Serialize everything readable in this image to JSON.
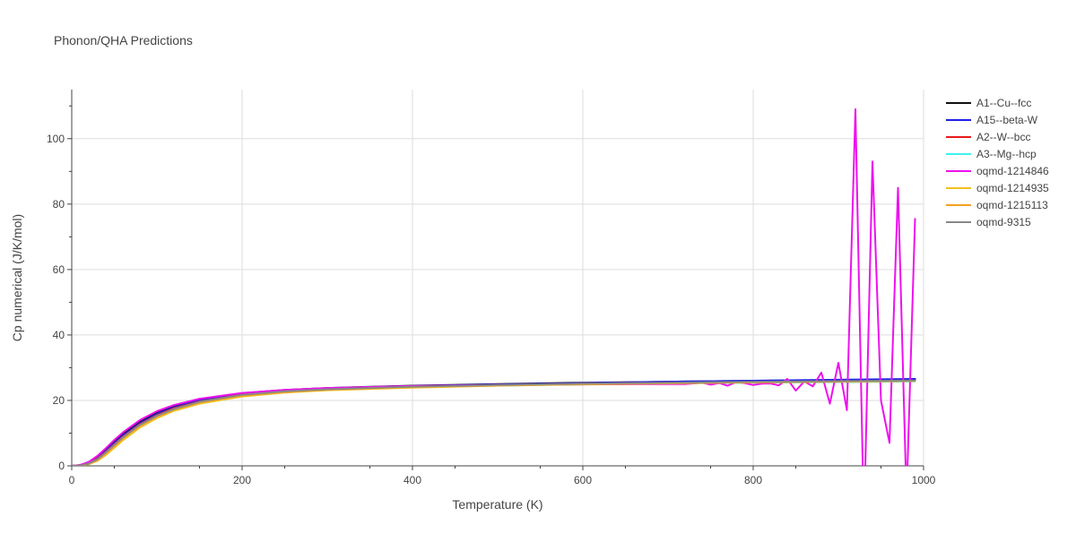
{
  "chart_data": {
    "type": "line",
    "title": "Phonon/QHA Predictions",
    "xlabel": "Temperature (K)",
    "ylabel": "Cp numerical (J/K/mol)",
    "xlim": [
      0,
      1000
    ],
    "ylim": [
      0,
      115
    ],
    "x_ticks": [
      0,
      200,
      400,
      600,
      800,
      1000
    ],
    "y_ticks": [
      0,
      20,
      40,
      60,
      80,
      100
    ],
    "grid": true,
    "legend_position": "right",
    "series": [
      {
        "name": "A1--Cu--fcc",
        "color": "#111111",
        "x": [
          0,
          10,
          20,
          30,
          40,
          50,
          60,
          80,
          100,
          120,
          150,
          200,
          250,
          300,
          400,
          500,
          600,
          700,
          800,
          900,
          990
        ],
        "y": [
          0,
          0.2,
          1.0,
          2.6,
          4.9,
          7.3,
          9.6,
          13.4,
          16.2,
          18.2,
          20.2,
          22.2,
          23.2,
          23.8,
          24.5,
          25.0,
          25.4,
          25.7,
          26.0,
          26.2,
          26.3
        ]
      },
      {
        "name": "A15--beta-W",
        "color": "#1f1fe8",
        "x": [
          0,
          10,
          20,
          30,
          40,
          50,
          60,
          80,
          100,
          120,
          150,
          200,
          250,
          300,
          400,
          500,
          600,
          700,
          800,
          900,
          990
        ],
        "y": [
          0,
          0.2,
          1.0,
          2.5,
          4.7,
          7.0,
          9.3,
          13.1,
          15.9,
          17.9,
          20.0,
          22.0,
          23.1,
          23.7,
          24.4,
          24.9,
          25.3,
          25.7,
          26.0,
          26.3,
          26.6
        ]
      },
      {
        "name": "A2--W--bcc",
        "color": "#e81a1a",
        "x": [
          0,
          10,
          20,
          30,
          40,
          50,
          60,
          80,
          100,
          120,
          150,
          200,
          250,
          300,
          400,
          500,
          600,
          700,
          800,
          900,
          990
        ],
        "y": [
          0,
          0.1,
          0.8,
          2.2,
          4.3,
          6.6,
          8.9,
          12.7,
          15.5,
          17.6,
          19.7,
          21.8,
          22.9,
          23.5,
          24.2,
          24.7,
          25.1,
          25.4,
          25.6,
          25.8,
          26.0
        ]
      },
      {
        "name": "A3--Mg--hcp",
        "color": "#3ff0f0",
        "x": [
          0,
          10,
          20,
          30,
          40,
          50,
          60,
          80,
          100,
          120,
          150,
          200,
          250,
          300,
          400,
          500,
          600,
          700,
          800,
          900,
          990
        ],
        "y": [
          0,
          0.05,
          0.5,
          1.6,
          3.5,
          5.8,
          8.2,
          12.2,
          15.1,
          17.2,
          19.4,
          21.6,
          22.7,
          23.3,
          24.0,
          24.5,
          24.9,
          25.2,
          25.4,
          25.6,
          25.8
        ]
      },
      {
        "name": "oqmd-1214846",
        "color": "#ee11ee",
        "x": [
          0,
          10,
          20,
          30,
          40,
          50,
          60,
          80,
          100,
          120,
          150,
          200,
          250,
          300,
          400,
          500,
          600,
          700,
          720,
          740,
          750,
          760,
          770,
          780,
          790,
          800,
          810,
          820,
          830,
          840,
          850,
          860,
          870,
          880,
          890,
          900,
          910,
          920,
          930,
          940,
          950,
          960,
          970,
          980,
          990
        ],
        "y": [
          0,
          0.3,
          1.2,
          3.0,
          5.4,
          7.9,
          10.2,
          14.0,
          16.7,
          18.6,
          20.5,
          22.3,
          23.2,
          23.8,
          24.4,
          24.7,
          24.9,
          25.0,
          25.0,
          25.4,
          24.8,
          25.3,
          24.5,
          25.6,
          25.3,
          24.7,
          25.1,
          25.2,
          24.6,
          26.6,
          23.0,
          25.8,
          24.3,
          28.5,
          19.0,
          31.5,
          17.0,
          109.0,
          -18.0,
          93.0,
          20.0,
          7.0,
          85.0,
          -10.0,
          75.5
        ]
      },
      {
        "name": "oqmd-1214935",
        "color": "#f0c020",
        "x": [
          0,
          10,
          20,
          30,
          40,
          50,
          60,
          80,
          100,
          120,
          150,
          200,
          250,
          300,
          400,
          500,
          600,
          700,
          800,
          900,
          990
        ],
        "y": [
          0,
          0.05,
          0.5,
          1.5,
          3.3,
          5.5,
          7.8,
          11.7,
          14.6,
          16.8,
          19.0,
          21.2,
          22.4,
          23.1,
          23.9,
          24.5,
          24.9,
          25.2,
          25.5,
          25.7,
          25.9
        ]
      },
      {
        "name": "oqmd-1215113",
        "color": "#f5a020",
        "x": [
          0,
          10,
          20,
          30,
          40,
          50,
          60,
          80,
          100,
          120,
          150,
          200,
          250,
          300,
          400,
          500,
          600,
          700,
          800,
          900,
          990
        ],
        "y": [
          0,
          0.1,
          0.6,
          1.8,
          3.8,
          6.1,
          8.4,
          12.3,
          15.1,
          17.2,
          19.4,
          21.5,
          22.6,
          23.3,
          24.1,
          24.6,
          25.0,
          25.3,
          25.6,
          25.8,
          26.0
        ]
      },
      {
        "name": "oqmd-9315",
        "color": "#888888",
        "x": [
          0,
          10,
          20,
          30,
          40,
          50,
          60,
          80,
          100,
          120,
          150,
          200,
          250,
          300,
          400,
          500,
          600,
          700,
          800,
          900,
          990
        ],
        "y": [
          0,
          0.1,
          0.7,
          2.0,
          4.1,
          6.4,
          8.7,
          12.5,
          15.3,
          17.4,
          19.6,
          21.7,
          22.8,
          23.4,
          24.2,
          24.7,
          25.1,
          25.4,
          25.7,
          25.9,
          26.1
        ]
      }
    ]
  }
}
